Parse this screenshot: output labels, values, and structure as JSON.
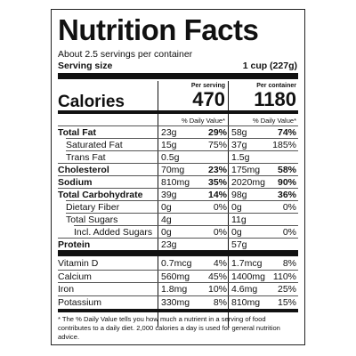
{
  "header": {
    "title": "Nutrition Facts",
    "servings": "About 2.5 servings per container",
    "serving_size_label": "Serving size",
    "serving_size": "1 cup (227g)"
  },
  "calories": {
    "label": "Calories",
    "per_serving_heading": "Per serving",
    "per_container_heading": "Per container",
    "per_serving": "470",
    "per_container": "1180"
  },
  "daily_value_heading": "% Daily Value*",
  "nutrients": [
    {
      "label": "Total Fat",
      "bold": true,
      "indent": 0,
      "serving_amount": "23g",
      "serving_dv": "29%",
      "container_amount": "58g",
      "container_dv": "74%"
    },
    {
      "label": "Saturated Fat",
      "bold": false,
      "indent": 1,
      "serving_amount": "15g",
      "serving_dv": "75%",
      "container_amount": "37g",
      "container_dv": "185%"
    },
    {
      "label": "Trans Fat",
      "bold": false,
      "indent": 1,
      "serving_amount": "0.5g",
      "serving_dv": null,
      "container_amount": "1.5g",
      "container_dv": null
    },
    {
      "label": "Cholesterol",
      "bold": true,
      "indent": 0,
      "serving_amount": "70mg",
      "serving_dv": "23%",
      "container_amount": "175mg",
      "container_dv": "58%"
    },
    {
      "label": "Sodium",
      "bold": true,
      "indent": 0,
      "serving_amount": "810mg",
      "serving_dv": "35%",
      "container_amount": "2020mg",
      "container_dv": "90%"
    },
    {
      "label": "Total Carbohydrate",
      "bold": true,
      "indent": 0,
      "serving_amount": "39g",
      "serving_dv": "14%",
      "container_amount": "98g",
      "container_dv": "36%"
    },
    {
      "label": "Dietary Fiber",
      "bold": false,
      "indent": 1,
      "serving_amount": "0g",
      "serving_dv": "0%",
      "container_amount": "0g",
      "container_dv": "0%"
    },
    {
      "label": "Total Sugars",
      "bold": false,
      "indent": 1,
      "serving_amount": "4g",
      "serving_dv": null,
      "container_amount": "11g",
      "container_dv": null
    },
    {
      "label": "Incl. Added Sugars",
      "bold": false,
      "indent": 2,
      "serving_amount": "0g",
      "serving_dv": "0%",
      "container_amount": "0g",
      "container_dv": "0%"
    },
    {
      "label": "Protein",
      "bold": true,
      "indent": 0,
      "serving_amount": "23g",
      "serving_dv": null,
      "container_amount": "57g",
      "container_dv": null
    }
  ],
  "vitamins": [
    {
      "label": "Vitamin D",
      "serving_amount": "0.7mcg",
      "serving_dv": "4%",
      "container_amount": "1.7mcg",
      "container_dv": "8%"
    },
    {
      "label": "Calcium",
      "serving_amount": "560mg",
      "serving_dv": "45%",
      "container_amount": "1400mg",
      "container_dv": "110%"
    },
    {
      "label": "Iron",
      "serving_amount": "1.8mg",
      "serving_dv": "10%",
      "container_amount": "4.6mg",
      "container_dv": "25%"
    },
    {
      "label": "Potassium",
      "serving_amount": "330mg",
      "serving_dv": "8%",
      "container_amount": "810mg",
      "container_dv": "15%"
    }
  ],
  "footnote": "* The % Daily Value tells you how much a nutrient in a serving of food contributes to a daily diet. 2,000 calories a day is used for general nutrition advice."
}
